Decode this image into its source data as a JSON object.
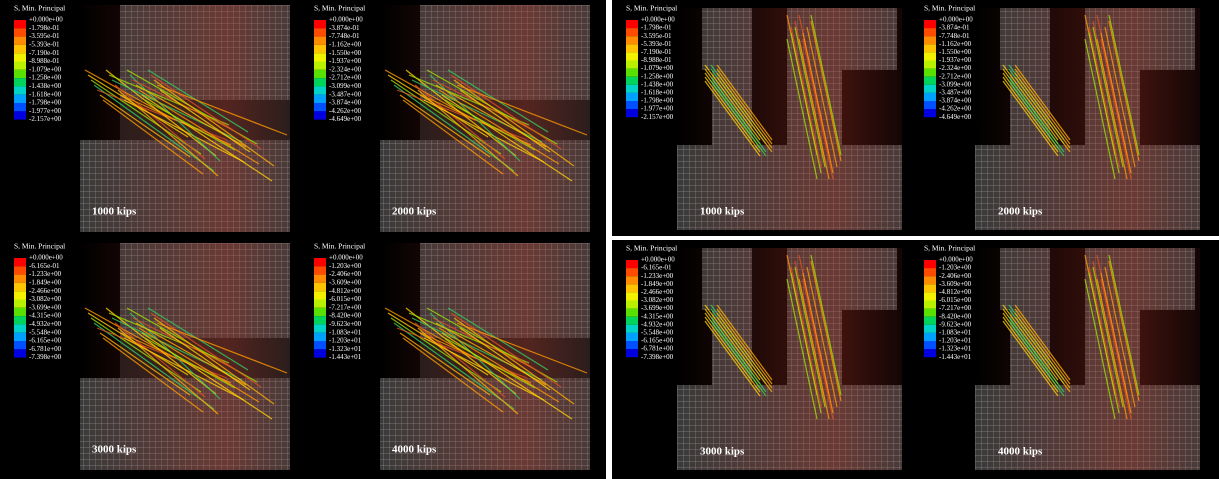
{
  "panels": [
    {
      "legend_title": "S, Min. Principal",
      "legend_labels": [
        "+0.000e+00",
        "-1.798e-01",
        "-3.595e-01",
        "-5.393e-01",
        "-7.190e-01",
        "-8.988e-01",
        "-1.079e+00",
        "-1.258e+00",
        "-1.438e+00",
        "-1.618e+00",
        "-1.798e+00",
        "-1.977e+00",
        "-2.157e+00"
      ],
      "load_label": "1000 kips"
    },
    {
      "legend_title": "S, Min. Principal",
      "legend_labels": [
        "+0.000e+00",
        "-3.874e-01",
        "-7.748e-01",
        "-1.162e+00",
        "-1.550e+00",
        "-1.937e+00",
        "-2.324e+00",
        "-2.712e+00",
        "-3.099e+00",
        "-3.487e+00",
        "-3.874e+00",
        "-4.262e+00",
        "-4.649e+00"
      ],
      "load_label": "2000 kips"
    },
    {
      "legend_title": "S, Min. Principal",
      "legend_labels": [
        "+0.000e+00",
        "-6.165e-01",
        "-1.233e+00",
        "-1.849e+00",
        "-2.466e+00",
        "-3.082e+00",
        "-3.699e+00",
        "-4.315e+00",
        "-4.932e+00",
        "-5.548e+00",
        "-6.165e+00",
        "-6.781e+00",
        "-7.398e+00"
      ],
      "load_label": "3000 kips"
    },
    {
      "legend_title": "S, Min. Principal",
      "legend_labels": [
        "+0.000e+00",
        "-1.203e+00",
        "-2.406e+00",
        "-3.609e+00",
        "-4.812e+00",
        "-6.015e+00",
        "-7.217e+00",
        "-8.420e+00",
        "-9.623e+00",
        "-1.083e+01",
        "-1.203e+01",
        "-1.323e+01",
        "-1.443e+01"
      ],
      "load_label": "4000 kips"
    },
    {
      "legend_title": "S, Min. Principal",
      "legend_labels": [
        "+0.000e+00",
        "-1.798e-01",
        "-3.595e-01",
        "-5.393e-01",
        "-7.190e-01",
        "-8.988e-01",
        "-1.079e+00",
        "-1.258e+00",
        "-1.438e+00",
        "-1.618e+00",
        "-1.798e+00",
        "-1.977e+00",
        "-2.157e+00"
      ],
      "load_label": "1000 kips"
    },
    {
      "legend_title": "S, Min. Principal",
      "legend_labels": [
        "+0.000e+00",
        "-3.874e-01",
        "-7.748e-01",
        "-1.162e+00",
        "-1.550e+00",
        "-1.937e+00",
        "-2.324e+00",
        "-2.712e+00",
        "-3.099e+00",
        "-3.487e+00",
        "-3.874e+00",
        "-4.262e+00",
        "-4.649e+00"
      ],
      "load_label": "2000 kips"
    },
    {
      "legend_title": "S, Min. Principal",
      "legend_labels": [
        "+0.000e+00",
        "-6.165e-01",
        "-1.233e+00",
        "-1.849e+00",
        "-2.466e+00",
        "-3.082e+00",
        "-3.699e+00",
        "-4.315e+00",
        "-4.932e+00",
        "-5.548e+00",
        "-6.165e+00",
        "-6.781e+00",
        "-7.398e+00"
      ],
      "load_label": "3000 kips"
    },
    {
      "legend_title": "S, Min. Principal",
      "legend_labels": [
        "+0.000e+00",
        "-1.203e+00",
        "-2.406e+00",
        "-3.609e+00",
        "-4.812e+00",
        "-6.015e+00",
        "-7.217e+00",
        "-8.420e+00",
        "-9.623e+00",
        "-1.083e+01",
        "-1.203e+01",
        "-1.323e+01",
        "-1.443e+01"
      ],
      "load_label": "4000 kips"
    }
  ]
}
